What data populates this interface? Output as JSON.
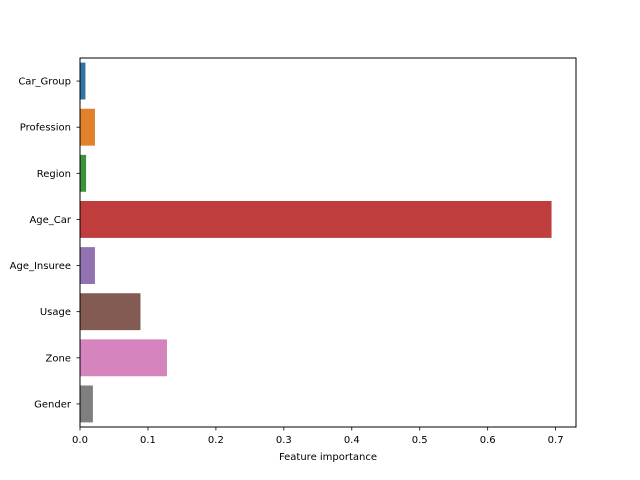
{
  "chart_data": {
    "type": "bar",
    "orientation": "horizontal",
    "title": "",
    "xlabel": "Feature importance",
    "ylabel": "",
    "xlim": [
      0,
      0.73
    ],
    "xticks": [
      0.0,
      0.1,
      0.2,
      0.3,
      0.4,
      0.5,
      0.6,
      0.7
    ],
    "xtick_labels": [
      "0.0",
      "0.1",
      "0.2",
      "0.3",
      "0.4",
      "0.5",
      "0.6",
      "0.7"
    ],
    "grid": false,
    "categories": [
      "Car_Group",
      "Profession",
      "Region",
      "Age_Car",
      "Age_Insuree",
      "Usage",
      "Zone",
      "Gender"
    ],
    "values": [
      0.008,
      0.022,
      0.009,
      0.694,
      0.022,
      0.089,
      0.128,
      0.019
    ],
    "colors": [
      "#3274a1",
      "#e1812c",
      "#3a923a",
      "#c03d3e",
      "#9372b2",
      "#845b53",
      "#d684bd",
      "#7f7f7f"
    ]
  }
}
